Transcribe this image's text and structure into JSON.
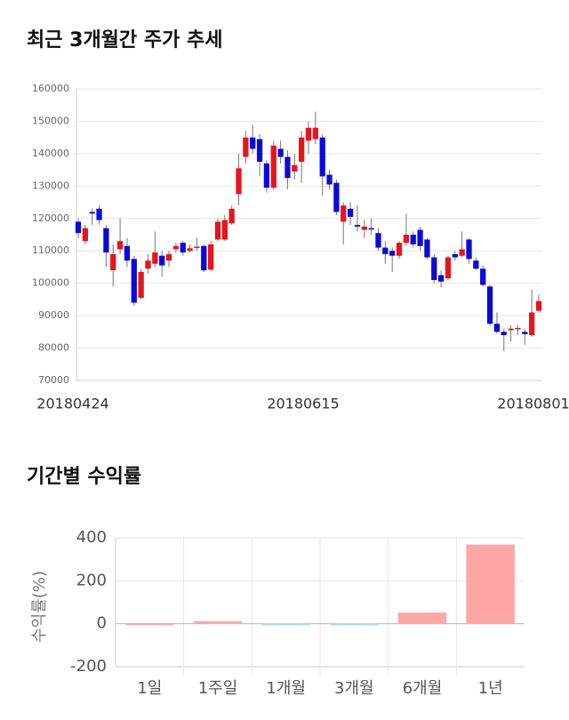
{
  "chart_data": [
    {
      "type": "candlestick",
      "title": "최근 3개월간 주가 추세",
      "categories": [
        "20180424",
        null,
        null,
        null,
        null,
        null,
        null,
        null,
        null,
        null,
        null,
        null,
        null,
        null,
        null,
        null,
        null,
        null,
        null,
        null,
        null,
        null,
        null,
        null,
        null,
        null,
        null,
        null,
        null,
        null,
        null,
        null,
        null,
        "20180615",
        null,
        null,
        null,
        null,
        null,
        null,
        null,
        null,
        null,
        null,
        null,
        null,
        null,
        null,
        null,
        null,
        null,
        null,
        null,
        null,
        null,
        null,
        null,
        null,
        null,
        null,
        null,
        null,
        null,
        null,
        null,
        null,
        "20180801"
      ],
      "open": [
        119000,
        113000,
        122000,
        123000,
        117000,
        104000,
        110500,
        111500,
        107500,
        95500,
        104500,
        106000,
        108500,
        107000,
        110500,
        112500,
        110000,
        111000,
        111500,
        104200,
        113500,
        113500,
        118500,
        127500,
        139000,
        145000,
        144500,
        137000,
        129500,
        141500,
        139000,
        134500,
        137500,
        144000,
        144500,
        145000,
        133500,
        131000,
        119000,
        123000,
        118000,
        116500,
        117000,
        115500,
        111000,
        110000,
        108500,
        112500,
        115000,
        116500,
        113500,
        108000,
        102500,
        101500,
        109000,
        108500,
        113500,
        107000,
        104500,
        99000,
        87500,
        85000,
        85500,
        85800,
        85000,
        84000,
        91500
      ],
      "high": [
        120000,
        118000,
        123000,
        124000,
        118000,
        112000,
        120000,
        114000,
        108500,
        104500,
        109000,
        116000,
        110000,
        110000,
        112500,
        113000,
        112000,
        114000,
        112000,
        113000,
        120000,
        121000,
        124000,
        140000,
        147000,
        149000,
        146000,
        138000,
        144000,
        144000,
        141000,
        140000,
        147000,
        150000,
        153000,
        146000,
        135000,
        132000,
        125000,
        125000,
        124000,
        119500,
        120000,
        117000,
        113000,
        111000,
        113000,
        121500,
        116000,
        117500,
        114000,
        109000,
        104000,
        108500,
        110000,
        116000,
        114000,
        108000,
        105500,
        99500,
        91000,
        86000,
        87000,
        87000,
        86000,
        98000,
        96500
      ],
      "low": [
        114000,
        112000,
        118000,
        118000,
        105000,
        99000,
        109000,
        105000,
        93000,
        95000,
        103000,
        105000,
        102000,
        105000,
        109500,
        108500,
        109500,
        110000,
        103500,
        103800,
        113000,
        113000,
        118000,
        124000,
        137000,
        140000,
        133000,
        128000,
        129000,
        137000,
        129000,
        132000,
        131000,
        140000,
        143000,
        127000,
        129000,
        121000,
        112000,
        118000,
        116000,
        114000,
        115000,
        110000,
        106000,
        103500,
        107500,
        111500,
        111000,
        110000,
        107500,
        100000,
        98800,
        101000,
        107000,
        108000,
        106000,
        104000,
        99000,
        87000,
        84500,
        79000,
        82000,
        84000,
        81000,
        83500,
        91000
      ],
      "close": [
        115500,
        117000,
        121500,
        119500,
        109500,
        109000,
        113000,
        107000,
        94000,
        103500,
        107000,
        109500,
        105500,
        109000,
        111500,
        109500,
        110800,
        111300,
        104000,
        112000,
        119000,
        119500,
        123000,
        135500,
        145000,
        141500,
        137500,
        129500,
        142500,
        139000,
        132500,
        136500,
        145000,
        148000,
        148000,
        133000,
        130500,
        122000,
        124000,
        120500,
        117500,
        117500,
        116800,
        111000,
        109000,
        108500,
        112500,
        115000,
        112000,
        111500,
        108000,
        101000,
        100500,
        108000,
        108000,
        110500,
        107500,
        104500,
        99500,
        87500,
        85000,
        84000,
        86000,
        86200,
        84300,
        91000,
        94500
      ],
      "up_color": "#e8141b",
      "down_color": "#0a0ad8",
      "ylim": [
        70000,
        160000
      ],
      "yticks": [
        70000,
        80000,
        90000,
        100000,
        110000,
        120000,
        130000,
        140000,
        150000,
        160000
      ],
      "grid": true
    },
    {
      "type": "bar",
      "title": "기간별 수익률",
      "y_label": "수익률(%)",
      "categories": [
        "1일",
        "1주일",
        "1개월",
        "3개월",
        "6개월",
        "1년"
      ],
      "values": [
        1,
        10,
        -5,
        -4,
        50,
        367
      ],
      "positive_color": "#ffa6a6",
      "negative_color": "#a8dde8",
      "ylim": [
        -200,
        400
      ],
      "yticks": [
        -200,
        0,
        200,
        400
      ],
      "grid": true
    }
  ]
}
